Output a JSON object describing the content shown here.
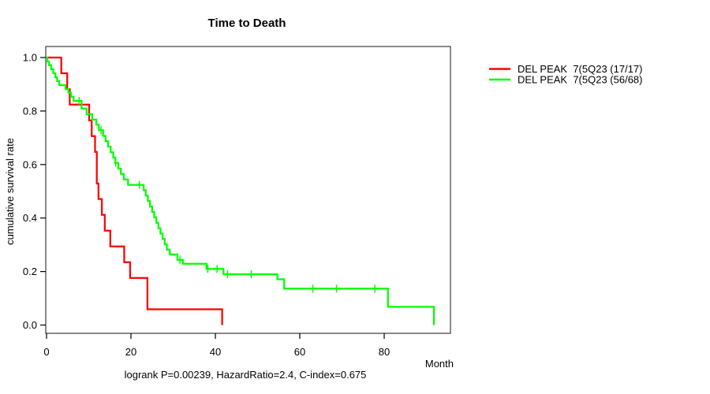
{
  "title": "Time to Death",
  "footnote": "logrank P=0.00239, HazardRatio=2.4, C-index=0.675",
  "axes": {
    "x_label": "Month",
    "y_label": "cumulative survival rate"
  },
  "legend": {
    "entries": [
      {
        "label": "DEL PEAK  7(5Q23 (17/17)",
        "color": "#ff0000"
      },
      {
        "label": "DEL PEAK  7(5Q23 (56/68)",
        "color": "#00ff00"
      }
    ]
  },
  "chart_data": {
    "type": "line",
    "subtype": "kaplan_meier_step",
    "title": "Time to Death",
    "xlabel": "Month",
    "ylabel": "cumulative survival rate",
    "xlim": [
      0,
      95
    ],
    "ylim": [
      0,
      1
    ],
    "x_ticks": [
      0,
      20,
      40,
      60,
      80
    ],
    "y_ticks": [
      "0.0",
      "0.2",
      "0.4",
      "0.6",
      "0.8",
      "1.0"
    ],
    "grid": false,
    "legend_position": "top-right-outside",
    "series": [
      {
        "name": "DEL PEAK  7(5Q23 (17/17)",
        "color": "#ff0000",
        "events": "17/17",
        "steps": [
          [
            0,
            1.0
          ],
          [
            3.5,
            0.941
          ],
          [
            4.9,
            0.882
          ],
          [
            5.5,
            0.824
          ],
          [
            10.1,
            0.765
          ],
          [
            10.7,
            0.706
          ],
          [
            11.5,
            0.647
          ],
          [
            11.9,
            0.529
          ],
          [
            12.3,
            0.471
          ],
          [
            13.1,
            0.412
          ],
          [
            13.8,
            0.353
          ],
          [
            15.1,
            0.294
          ],
          [
            18.4,
            0.235
          ],
          [
            19.8,
            0.176
          ],
          [
            23.9,
            0.059
          ],
          [
            41.6,
            0.0
          ]
        ],
        "censor_marks": []
      },
      {
        "name": "DEL PEAK  7(5Q23 (56/68)",
        "color": "#00ff00",
        "events": "56/68",
        "steps": [
          [
            0,
            1.0
          ],
          [
            0.2,
            0.985
          ],
          [
            0.6,
            0.971
          ],
          [
            1.1,
            0.956
          ],
          [
            1.6,
            0.941
          ],
          [
            2.1,
            0.926
          ],
          [
            2.5,
            0.912
          ],
          [
            3.0,
            0.897
          ],
          [
            4.5,
            0.882
          ],
          [
            5.2,
            0.868
          ],
          [
            5.8,
            0.853
          ],
          [
            6.4,
            0.838
          ],
          [
            8.3,
            0.809
          ],
          [
            9.5,
            0.788
          ],
          [
            10.8,
            0.768
          ],
          [
            11.8,
            0.749
          ],
          [
            12.4,
            0.728
          ],
          [
            13.4,
            0.707
          ],
          [
            14.0,
            0.687
          ],
          [
            14.6,
            0.667
          ],
          [
            15.2,
            0.646
          ],
          [
            15.8,
            0.626
          ],
          [
            16.3,
            0.606
          ],
          [
            17.0,
            0.585
          ],
          [
            17.6,
            0.565
          ],
          [
            18.3,
            0.544
          ],
          [
            19.3,
            0.524
          ],
          [
            23.0,
            0.504
          ],
          [
            23.5,
            0.484
          ],
          [
            24.0,
            0.464
          ],
          [
            24.5,
            0.443
          ],
          [
            25.0,
            0.423
          ],
          [
            25.5,
            0.403
          ],
          [
            26.0,
            0.382
          ],
          [
            26.5,
            0.362
          ],
          [
            27.0,
            0.342
          ],
          [
            27.5,
            0.322
          ],
          [
            28.0,
            0.302
          ],
          [
            28.5,
            0.282
          ],
          [
            29.2,
            0.264
          ],
          [
            31.0,
            0.244
          ],
          [
            32.3,
            0.229
          ],
          [
            37.9,
            0.21
          ],
          [
            41.9,
            0.19
          ],
          [
            54.7,
            0.171
          ],
          [
            56.3,
            0.136
          ],
          [
            80.9,
            0.068
          ],
          [
            91.8,
            0.0
          ]
        ],
        "censor_marks": [
          [
            7.7,
            0.838
          ],
          [
            12.9,
            0.728
          ],
          [
            16.4,
            0.606
          ],
          [
            22.0,
            0.524
          ],
          [
            31.6,
            0.244
          ],
          [
            38.2,
            0.21
          ],
          [
            40.4,
            0.21
          ],
          [
            42.9,
            0.19
          ],
          [
            48.5,
            0.19
          ],
          [
            63.1,
            0.136
          ],
          [
            68.7,
            0.136
          ],
          [
            77.8,
            0.136
          ]
        ]
      }
    ]
  }
}
